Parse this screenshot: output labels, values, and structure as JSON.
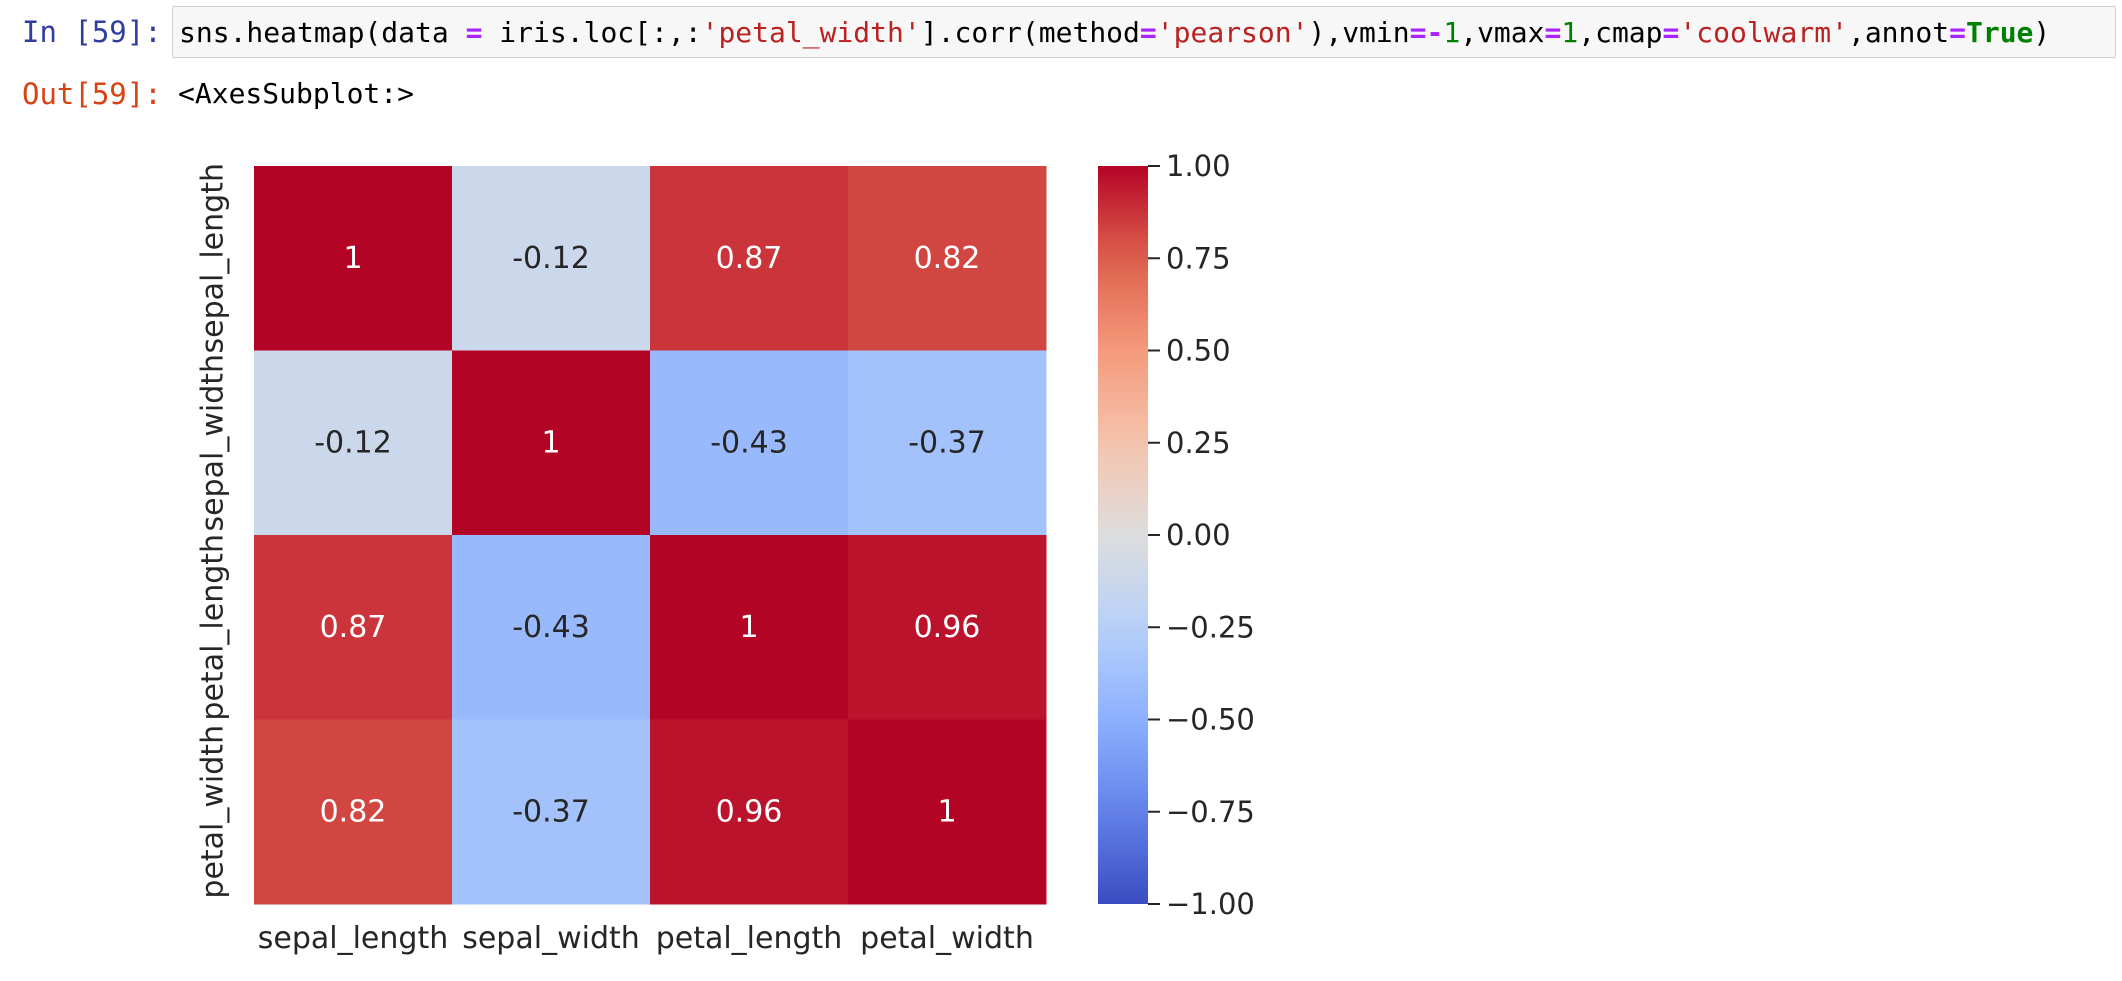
{
  "cell": {
    "in_prompt": "In [59]:",
    "out_prompt": "Out[59]:",
    "output_text": "<AxesSubplot:>",
    "code_tokens": [
      {
        "t": "sns.heatmap(data ",
        "c": "tok-name"
      },
      {
        "t": "=",
        "c": "tok-op"
      },
      {
        "t": " iris.loc[:,:",
        "c": "tok-name"
      },
      {
        "t": "'petal_width'",
        "c": "tok-str"
      },
      {
        "t": "].corr(method",
        "c": "tok-name"
      },
      {
        "t": "=",
        "c": "tok-op"
      },
      {
        "t": "'pearson'",
        "c": "tok-str"
      },
      {
        "t": "),vmin",
        "c": "tok-name"
      },
      {
        "t": "=-",
        "c": "tok-op"
      },
      {
        "t": "1",
        "c": "tok-num"
      },
      {
        "t": ",vmax",
        "c": "tok-name"
      },
      {
        "t": "=",
        "c": "tok-op"
      },
      {
        "t": "1",
        "c": "tok-num"
      },
      {
        "t": ",cmap",
        "c": "tok-name"
      },
      {
        "t": "=",
        "c": "tok-op"
      },
      {
        "t": "'coolwarm'",
        "c": "tok-str"
      },
      {
        "t": ",annot",
        "c": "tok-name"
      },
      {
        "t": "=",
        "c": "tok-op"
      },
      {
        "t": "True",
        "c": "tok-kw"
      },
      {
        "t": ")",
        "c": "tok-punc"
      }
    ]
  },
  "chart_data": {
    "type": "heatmap",
    "title": "",
    "xlabel": "",
    "ylabel": "",
    "x_categories": [
      "sepal_length",
      "sepal_width",
      "petal_length",
      "petal_width"
    ],
    "y_categories": [
      "sepal_length",
      "sepal_width",
      "petal_length",
      "petal_width"
    ],
    "values": [
      [
        1,
        -0.12,
        0.87,
        0.82
      ],
      [
        -0.12,
        1,
        -0.43,
        -0.37
      ],
      [
        0.87,
        -0.43,
        1,
        0.96
      ],
      [
        0.82,
        -0.37,
        0.96,
        1
      ]
    ],
    "annotations": [
      [
        "1",
        "-0.12",
        "0.87",
        "0.82"
      ],
      [
        "-0.12",
        "1",
        "-0.43",
        "-0.37"
      ],
      [
        "0.87",
        "-0.43",
        "1",
        "0.96"
      ],
      [
        "0.82",
        "-0.37",
        "0.96",
        "1"
      ]
    ],
    "vmin": -1,
    "vmax": 1,
    "colormap": "coolwarm",
    "colorbar": {
      "ticks": [
        1.0,
        0.75,
        0.5,
        0.25,
        0.0,
        -0.25,
        -0.5,
        -0.75,
        -1.0
      ],
      "tick_labels": [
        "1.00",
        "0.75",
        "0.50",
        "0.25",
        "0.00",
        "−0.25",
        "−0.50",
        "−0.75",
        "−1.00"
      ]
    },
    "colors": {
      "coolwarm_low": "#3b4cc0",
      "coolwarm_mid": "#dddddd",
      "coolwarm_high": "#b40426",
      "text_light": "#ffffff",
      "text_dark": "#262626"
    }
  }
}
